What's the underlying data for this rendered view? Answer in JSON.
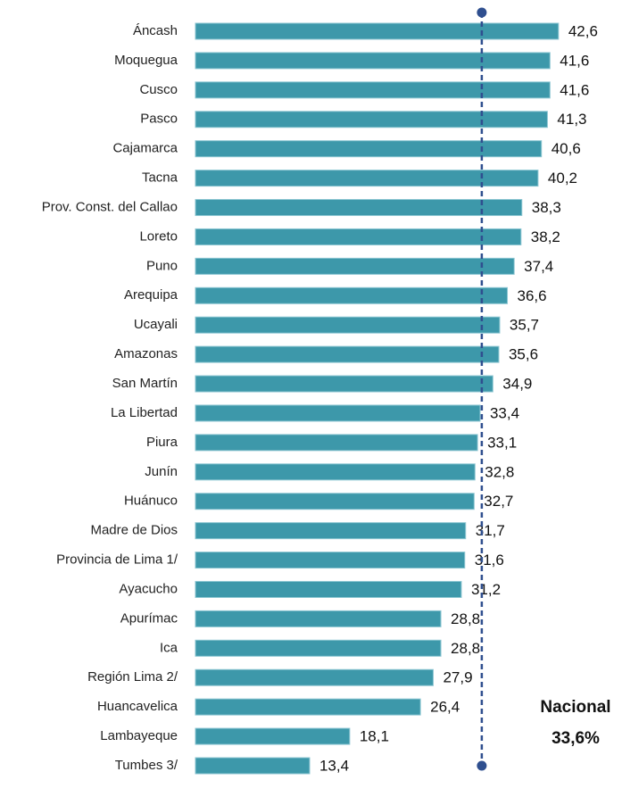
{
  "chart_data": {
    "type": "barh",
    "categories": [
      "Áncash",
      "Moquegua",
      "Cusco",
      "Pasco",
      "Cajamarca",
      "Tacna",
      "Prov. Const. del Callao",
      "Loreto",
      "Puno",
      "Arequipa",
      "Ucayali",
      "Amazonas",
      "San Martín",
      "La Libertad",
      "Piura",
      "Junín",
      "Huánuco",
      "Madre de Dios",
      "Provincia de Lima 1/",
      "Ayacucho",
      "Apurímac",
      "Ica",
      "Región Lima 2/",
      "Huancavelica",
      "Lambayeque",
      "Tumbes 3/"
    ],
    "values": [
      42.6,
      41.6,
      41.6,
      41.3,
      40.6,
      40.2,
      38.3,
      38.2,
      37.4,
      36.6,
      35.7,
      35.6,
      34.9,
      33.4,
      33.1,
      32.8,
      32.7,
      31.7,
      31.6,
      31.2,
      28.8,
      28.8,
      27.9,
      26.4,
      18.1,
      13.4
    ],
    "value_labels": [
      "42,6",
      "41,6",
      "41,6",
      "41,3",
      "40,6",
      "40,2",
      "38,3",
      "38,2",
      "37,4",
      "36,6",
      "35,7",
      "35,6",
      "34,9",
      "33,4",
      "33,1",
      "32,8",
      "32,7",
      "31,7",
      "31,6",
      "31,2",
      "28,8",
      "28,8",
      "27,9",
      "26,4",
      "18,1",
      "13,4"
    ],
    "color": "#3d98aa",
    "xlim": [
      0,
      50
    ],
    "reference": {
      "value": 33.6,
      "label": "Nacional",
      "value_label": "33,6%",
      "color": "#2f4f8f"
    }
  }
}
